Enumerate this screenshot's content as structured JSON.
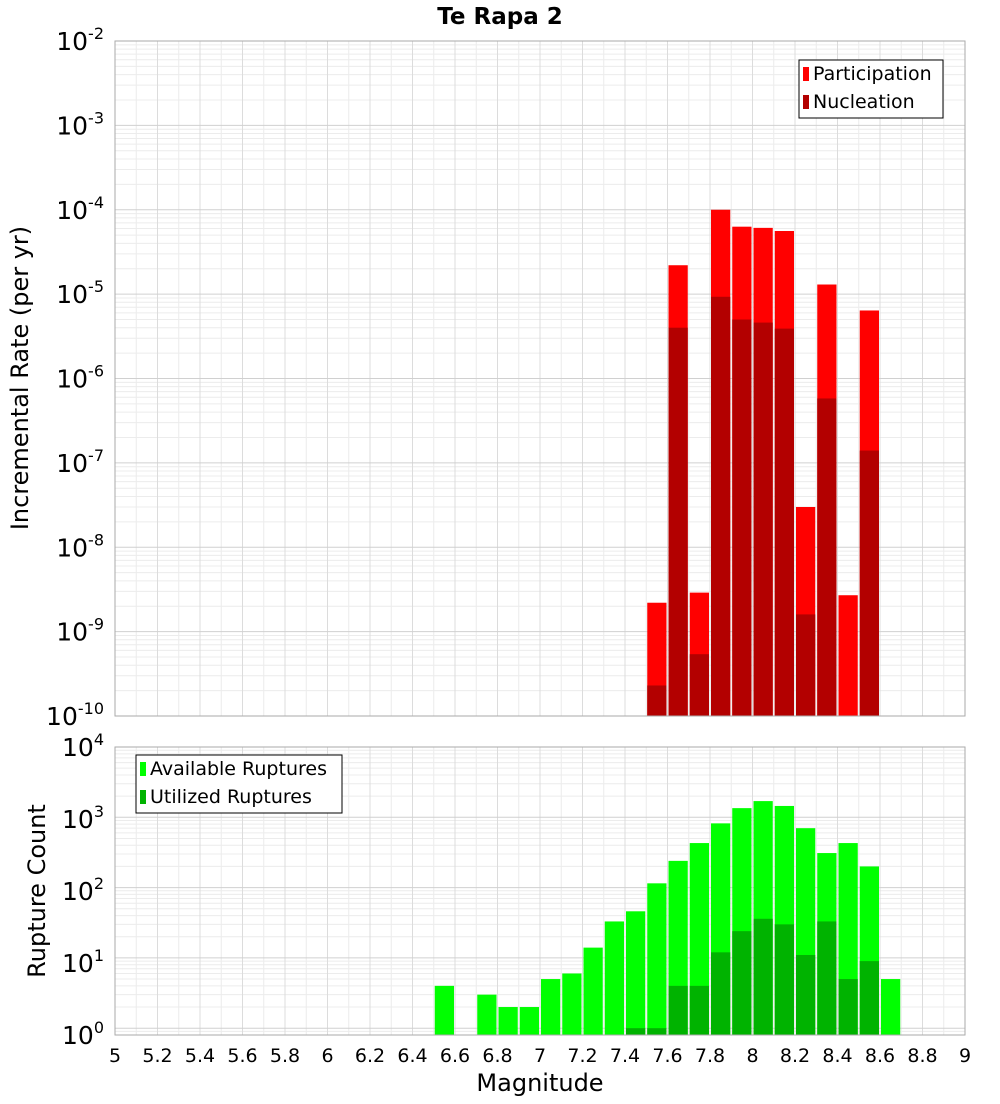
{
  "chart_data": {
    "title": "Te Rapa 2",
    "xlabel": "Magnitude",
    "x_ticks": [
      "5",
      "5.2",
      "5.4",
      "5.6",
      "5.8",
      "6",
      "6.2",
      "6.4",
      "6.6",
      "6.8",
      "7",
      "7.2",
      "7.4",
      "7.6",
      "7.8",
      "8",
      "8.2",
      "8.4",
      "8.6",
      "8.8",
      "9"
    ],
    "xlim": [
      5,
      9
    ],
    "bin_width": 0.1,
    "panels": [
      {
        "type": "bar",
        "ylabel": "Incremental Rate (per yr)",
        "yscale": "log",
        "ylim": [
          1e-10,
          0.01
        ],
        "y_ticks": [
          {
            "base": "10",
            "exp": "-2"
          },
          {
            "base": "10",
            "exp": "-3"
          },
          {
            "base": "10",
            "exp": "-4"
          },
          {
            "base": "10",
            "exp": "-5"
          },
          {
            "base": "10",
            "exp": "-6"
          },
          {
            "base": "10",
            "exp": "-7"
          },
          {
            "base": "10",
            "exp": "-8"
          },
          {
            "base": "10",
            "exp": "-9"
          },
          {
            "base": "10",
            "exp": "-10"
          }
        ],
        "legend_position": "top-right",
        "series": [
          {
            "name": "Participation",
            "color": "#ff0000",
            "x": [
              7.55,
              7.65,
              7.75,
              7.85,
              7.95,
              8.05,
              8.15,
              8.25,
              8.35,
              8.45,
              8.55
            ],
            "values": [
              2.2e-09,
              2.2e-05,
              2.9e-09,
              0.0001,
              6.3e-05,
              6.1e-05,
              5.6e-05,
              3e-08,
              1.3e-05,
              2.7e-09,
              6.4e-06
            ]
          },
          {
            "name": "Nucleation",
            "color": "#b30000",
            "x": [
              7.55,
              7.65,
              7.75,
              7.85,
              7.95,
              8.05,
              8.15,
              8.25,
              8.35,
              8.45,
              8.55
            ],
            "values": [
              2.3e-10,
              4e-06,
              5.4e-10,
              9.3e-06,
              5e-06,
              4.6e-06,
              3.9e-06,
              1.6e-09,
              5.8e-07,
              null,
              1.4e-07
            ]
          }
        ]
      },
      {
        "type": "bar",
        "ylabel": "Rupture Count",
        "yscale": "log",
        "ylim": [
          0.8,
          10000
        ],
        "y_ticks": [
          {
            "base": "10",
            "exp": "4"
          },
          {
            "base": "10",
            "exp": "3"
          },
          {
            "base": "10",
            "exp": "2"
          },
          {
            "base": "10",
            "exp": "1"
          },
          {
            "base": "10",
            "exp": "0"
          }
        ],
        "legend_position": "top-left",
        "series": [
          {
            "name": "Available Ruptures",
            "color": "#00ff00",
            "x": [
              6.55,
              6.75,
              6.85,
              6.95,
              7.05,
              7.15,
              7.25,
              7.35,
              7.45,
              7.55,
              7.65,
              7.75,
              7.85,
              7.95,
              8.05,
              8.15,
              8.25,
              8.35,
              8.45,
              8.55,
              8.65
            ],
            "values": [
              4,
              3,
              2,
              2,
              5,
              6,
              14,
              33,
              46,
              115,
              240,
              430,
              820,
              1350,
              1700,
              1450,
              700,
              310,
              430,
              200,
              5
            ]
          },
          {
            "name": "Utilized Ruptures",
            "color": "#00b300",
            "x": [
              7.45,
              7.55,
              7.65,
              7.75,
              7.85,
              7.95,
              8.05,
              8.15,
              8.25,
              8.35,
              8.45,
              8.55
            ],
            "values": [
              1,
              1,
              4,
              4,
              12,
              24,
              36,
              30,
              11,
              33,
              5,
              9
            ]
          }
        ]
      }
    ]
  }
}
